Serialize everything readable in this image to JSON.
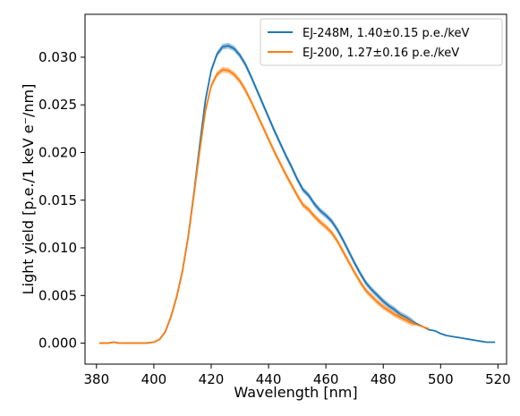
{
  "chart_data": {
    "type": "line",
    "title": "",
    "xlabel": "Wavelength [nm]",
    "ylabel": "Light yield [p.e./1 keV e⁻/nm]",
    "xlim": [
      376,
      523
    ],
    "ylim": [
      -0.0022,
      0.0345
    ],
    "x_ticks": [
      380,
      400,
      420,
      440,
      460,
      480,
      500,
      520
    ],
    "x_tick_labels": [
      "380",
      "400",
      "420",
      "440",
      "460",
      "480",
      "500",
      "520"
    ],
    "y_ticks": [
      0.0,
      0.005,
      0.01,
      0.015,
      0.02,
      0.025,
      0.03
    ],
    "y_tick_labels": [
      "0.000",
      "0.005",
      "0.010",
      "0.015",
      "0.020",
      "0.025",
      "0.030"
    ],
    "grid": false,
    "legend_position": "top-right",
    "series": [
      {
        "name": "EJ-248M, 1.40±0.15 p.e./keV",
        "color": "#1f77b4",
        "band_halfwidth": 0.0003,
        "points": [
          [
            381,
            0.0
          ],
          [
            384,
            0.0
          ],
          [
            386,
            0.0001
          ],
          [
            388,
            0.0
          ],
          [
            391,
            0.0
          ],
          [
            394,
            0.0
          ],
          [
            397,
            0.0
          ],
          [
            400,
            0.0001
          ],
          [
            402,
            0.0004
          ],
          [
            404,
            0.0012
          ],
          [
            406,
            0.0028
          ],
          [
            408,
            0.0049
          ],
          [
            410,
            0.0076
          ],
          [
            412,
            0.0112
          ],
          [
            414,
            0.0158
          ],
          [
            416,
            0.0208
          ],
          [
            418,
            0.0255
          ],
          [
            420,
            0.0286
          ],
          [
            422,
            0.0303
          ],
          [
            424,
            0.0311
          ],
          [
            426,
            0.0312
          ],
          [
            428,
            0.0309
          ],
          [
            430,
            0.0302
          ],
          [
            432,
            0.0292
          ],
          [
            434,
            0.0279
          ],
          [
            436,
            0.0265
          ],
          [
            438,
            0.0251
          ],
          [
            440,
            0.0237
          ],
          [
            442,
            0.0223
          ],
          [
            444,
            0.021
          ],
          [
            446,
            0.0197
          ],
          [
            448,
            0.0185
          ],
          [
            450,
            0.0172
          ],
          [
            452,
            0.0161
          ],
          [
            454,
            0.0155
          ],
          [
            456,
            0.0146
          ],
          [
            458,
            0.0139
          ],
          [
            460,
            0.0134
          ],
          [
            462,
            0.0128
          ],
          [
            464,
            0.0119
          ],
          [
            466,
            0.0108
          ],
          [
            468,
            0.0096
          ],
          [
            470,
            0.0084
          ],
          [
            472,
            0.0073
          ],
          [
            474,
            0.0063
          ],
          [
            476,
            0.0056
          ],
          [
            478,
            0.005
          ],
          [
            480,
            0.0044
          ],
          [
            482,
            0.0039
          ],
          [
            484,
            0.0035
          ],
          [
            486,
            0.003
          ],
          [
            488,
            0.0027
          ],
          [
            490,
            0.0023
          ],
          [
            492,
            0.002
          ],
          [
            494,
            0.0017
          ],
          [
            496,
            0.0014
          ],
          [
            498,
            0.0013
          ],
          [
            500,
            0.001
          ],
          [
            502,
            0.0008
          ],
          [
            504,
            0.0007
          ],
          [
            506,
            0.0006
          ],
          [
            508,
            0.0005
          ],
          [
            510,
            0.0004
          ],
          [
            512,
            0.0003
          ],
          [
            514,
            0.0002
          ],
          [
            516,
            0.0001
          ],
          [
            518,
            0.0001
          ],
          [
            519,
            0.0001
          ]
        ]
      },
      {
        "name": "EJ-200, 1.27±0.16 p.e./keV",
        "color": "#ff7f0e",
        "band_halfwidth": 0.0003,
        "points": [
          [
            381,
            0.0
          ],
          [
            384,
            0.0
          ],
          [
            386,
            0.0001
          ],
          [
            388,
            0.0
          ],
          [
            391,
            0.0
          ],
          [
            394,
            0.0
          ],
          [
            397,
            0.0
          ],
          [
            400,
            0.0001
          ],
          [
            402,
            0.0004
          ],
          [
            404,
            0.0012
          ],
          [
            406,
            0.0028
          ],
          [
            408,
            0.0049
          ],
          [
            410,
            0.0076
          ],
          [
            412,
            0.0112
          ],
          [
            414,
            0.0156
          ],
          [
            416,
            0.0202
          ],
          [
            418,
            0.0244
          ],
          [
            420,
            0.027
          ],
          [
            422,
            0.0282
          ],
          [
            424,
            0.0287
          ],
          [
            426,
            0.0286
          ],
          [
            428,
            0.0282
          ],
          [
            430,
            0.0275
          ],
          [
            432,
            0.0265
          ],
          [
            434,
            0.0253
          ],
          [
            436,
            0.024
          ],
          [
            438,
            0.0227
          ],
          [
            440,
            0.0214
          ],
          [
            442,
            0.0201
          ],
          [
            444,
            0.0189
          ],
          [
            446,
            0.0177
          ],
          [
            448,
            0.0166
          ],
          [
            450,
            0.0155
          ],
          [
            452,
            0.0145
          ],
          [
            454,
            0.014
          ],
          [
            456,
            0.0133
          ],
          [
            458,
            0.0127
          ],
          [
            460,
            0.0122
          ],
          [
            462,
            0.0116
          ],
          [
            464,
            0.0107
          ],
          [
            466,
            0.0096
          ],
          [
            468,
            0.0085
          ],
          [
            470,
            0.0074
          ],
          [
            472,
            0.0064
          ],
          [
            474,
            0.0055
          ],
          [
            476,
            0.0049
          ],
          [
            478,
            0.0043
          ],
          [
            480,
            0.0038
          ],
          [
            482,
            0.0034
          ],
          [
            484,
            0.003
          ],
          [
            486,
            0.0027
          ],
          [
            488,
            0.0024
          ],
          [
            490,
            0.0021
          ],
          [
            492,
            0.0019
          ],
          [
            494,
            0.0017
          ],
          [
            496,
            0.0015
          ]
        ]
      }
    ]
  }
}
